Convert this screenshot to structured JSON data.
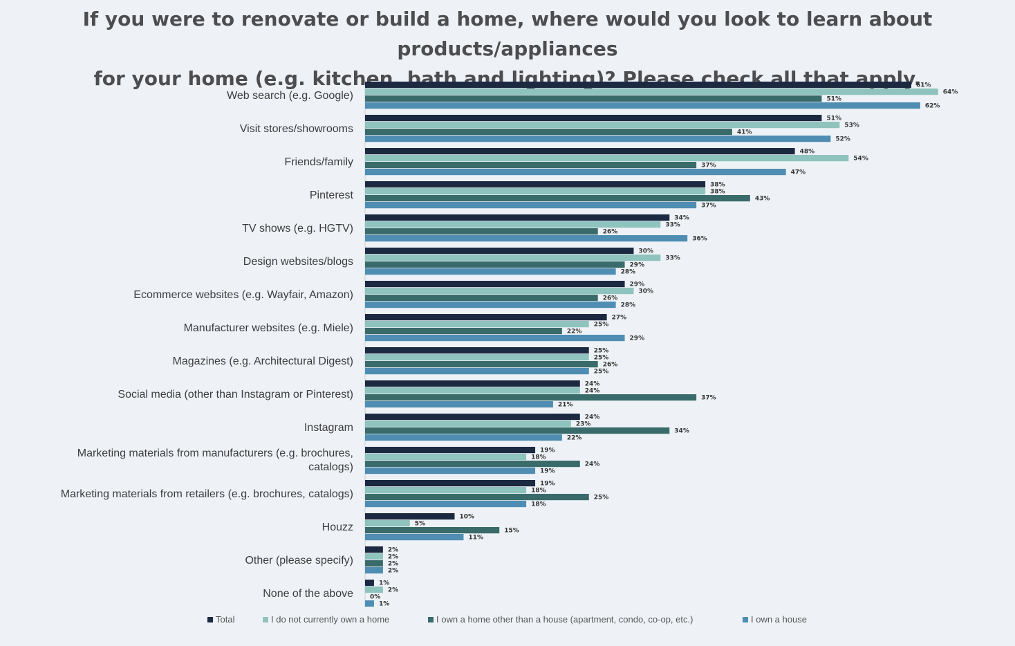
{
  "chart_data": {
    "type": "bar",
    "orientation": "horizontal",
    "title_lines": [
      "If you were to renovate or build a home, where would you look to learn about products/appliances",
      "for your home (e.g. kitchen, bath and lighting)? Please check all that apply."
    ],
    "categories": [
      [
        "Web search (e.g. Google)"
      ],
      [
        "Visit stores/showrooms"
      ],
      [
        "Friends/family"
      ],
      [
        "Pinterest"
      ],
      [
        "TV shows (e.g. HGTV)"
      ],
      [
        "Design websites/blogs"
      ],
      [
        "Ecommerce websites (e.g. Wayfair, Amazon)"
      ],
      [
        "Manufacturer websites (e.g. Miele)"
      ],
      [
        "Magazines (e.g. Architectural Digest)"
      ],
      [
        "Social media (other than Instagram or Pinterest)"
      ],
      [
        "Instagram"
      ],
      [
        "Marketing materials from manufacturers (e.g. brochures,",
        "catalogs)"
      ],
      [
        "Marketing materials from retailers (e.g. brochures, catalogs)"
      ],
      [
        "Houzz"
      ],
      [
        "Other (please specify)"
      ],
      [
        "None of the above"
      ]
    ],
    "series": [
      {
        "name": "Total",
        "color": "#1b2a41",
        "values": [
          61,
          51,
          48,
          38,
          34,
          30,
          29,
          27,
          25,
          24,
          24,
          19,
          19,
          10,
          2,
          1
        ],
        "labels": [
          "61%",
          "51%",
          "48%",
          "38%",
          "34%",
          "30%",
          "29%",
          "27%",
          "25%",
          "24%",
          "24%",
          "19%",
          "19%",
          "10%",
          "2%",
          "1%"
        ]
      },
      {
        "name": "I do not currently own a home",
        "color": "#8fc3bd",
        "values": [
          64,
          53,
          54,
          38,
          33,
          33,
          30,
          25,
          25,
          24,
          23,
          18,
          18,
          5,
          2,
          2
        ],
        "labels": [
          "64%",
          "53%",
          "54%",
          "38%",
          "33%",
          "33%",
          "30%",
          "25%",
          "25%",
          "24%",
          "23%",
          "18%",
          "18%",
          "5%",
          "2%",
          "2%"
        ]
      },
      {
        "name": "I own a home other than a house (apartment, condo, co-op, etc.)",
        "color": "#3a6b6b",
        "values": [
          51,
          41,
          37,
          43,
          26,
          29,
          26,
          22,
          26,
          37,
          34,
          24,
          25,
          15,
          2,
          0
        ],
        "labels": [
          "51%",
          "41%",
          "37%",
          "43%",
          "26%",
          "29%",
          "26%",
          "22%",
          "26%",
          "37%",
          "34%",
          "24%",
          "25%",
          "15%",
          "2%",
          "0%"
        ]
      },
      {
        "name": "I own a house",
        "color": "#4f8db3",
        "values": [
          62,
          52,
          47,
          37,
          36,
          28,
          28,
          29,
          25,
          21,
          22,
          19,
          18,
          11,
          2,
          1
        ],
        "labels": [
          "62%",
          "52%",
          "47%",
          "37%",
          "36%",
          "28%",
          "28%",
          "29%",
          "25%",
          "21%",
          "22%",
          "19%",
          "18%",
          "11%",
          "2%",
          "1%"
        ]
      }
    ],
    "xlim": [
      0,
      70
    ],
    "grid": false,
    "legend_position": "bottom"
  }
}
